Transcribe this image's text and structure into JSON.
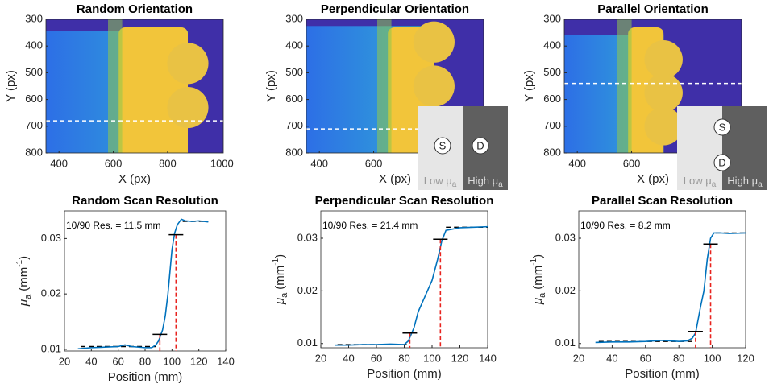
{
  "chart_data": [
    {
      "type": "image",
      "title": "Random Orientation",
      "xlabel": "X (px)",
      "ylabel": "Y (px)",
      "xlim": [
        352,
        1005
      ],
      "xticks": [
        400,
        600,
        800,
        1000
      ],
      "ylim": [
        300,
        800
      ],
      "yticks": [
        300,
        400,
        500,
        600,
        700,
        800
      ],
      "scan_y": 680
    },
    {
      "type": "image",
      "title": "Perpendicular Orientation",
      "xlabel": "X (px)",
      "ylabel": "Y (px)",
      "xlim": [
        352,
        1005
      ],
      "xticks": [
        400,
        600
      ],
      "ylim": [
        300,
        800
      ],
      "yticks": [
        300,
        400,
        500,
        600,
        700,
        800
      ],
      "scan_y": 710,
      "inset": {
        "layout": "side",
        "source": "S",
        "detector": "D",
        "low": "Low μ",
        "low_sub": "a",
        "high": "High μ",
        "high_sub": "a"
      }
    },
    {
      "type": "image",
      "title": "Parallel Orientation",
      "xlabel": "X (px)",
      "ylabel": "Y (px)",
      "xlim": [
        352,
        1005
      ],
      "xticks": [
        400,
        600
      ],
      "ylim": [
        300,
        800
      ],
      "yticks": [
        300,
        400,
        500,
        600,
        700,
        800
      ],
      "scan_y": 540,
      "inset": {
        "layout": "stacked",
        "source": "S",
        "detector": "D",
        "low": "Low μ",
        "low_sub": "a",
        "high": "High μ",
        "high_sub": "a"
      }
    },
    {
      "type": "line",
      "title": "Random Scan Resolution",
      "xlabel": "Position (mm)",
      "ylabel": {
        "symbol": "μ",
        "sub": "a",
        "unit": "(mm",
        "sup": "-1",
        "close": ")"
      },
      "annotation": "10/90 Res. = 11.5 mm",
      "color": "#0072bd",
      "xlim": [
        20,
        140
      ],
      "xticks": [
        20,
        40,
        60,
        80,
        100,
        120,
        140
      ],
      "ylim": [
        0.0097,
        0.035
      ],
      "yticks": [
        0.01,
        0.02,
        0.03
      ],
      "x": [
        30,
        40,
        50,
        60,
        65,
        70,
        80,
        85,
        88,
        90,
        93,
        95,
        97,
        100,
        102,
        104,
        107,
        110,
        115,
        120,
        127
      ],
      "values": [
        0.0101,
        0.0103,
        0.0104,
        0.0105,
        0.0108,
        0.0105,
        0.0103,
        0.0103,
        0.0108,
        0.0115,
        0.0135,
        0.016,
        0.02,
        0.028,
        0.031,
        0.0325,
        0.0335,
        0.0332,
        0.0331,
        0.0332,
        0.033
      ],
      "markers": [
        {
          "x": 91,
          "y": 0.0127
        },
        {
          "x": 103,
          "y": 0.0307
        }
      ],
      "fits": [
        {
          "x": [
            32,
            88
          ],
          "y": 0.0105
        },
        {
          "x": [
            108,
            127
          ],
          "y": 0.0331
        }
      ]
    },
    {
      "type": "line",
      "title": "Perpendicular Scan Resolution",
      "xlabel": "Position (mm)",
      "ylabel": {
        "symbol": "μ",
        "sub": "a",
        "unit": "(mm",
        "sup": "-1",
        "close": ")"
      },
      "annotation": "10/90 Res. = 21.4 mm",
      "color": "#0072bd",
      "xlim": [
        20,
        140
      ],
      "xticks": [
        20,
        40,
        60,
        80,
        100,
        120,
        140
      ],
      "ylim": [
        0.0092,
        0.0352
      ],
      "yticks": [
        0.01,
        0.02,
        0.03
      ],
      "x": [
        30,
        40,
        50,
        60,
        70,
        80,
        83,
        87,
        90,
        95,
        100,
        104,
        107,
        110,
        120,
        130,
        140
      ],
      "values": [
        0.0097,
        0.0097,
        0.0098,
        0.0098,
        0.0099,
        0.0098,
        0.0105,
        0.013,
        0.016,
        0.019,
        0.022,
        0.026,
        0.0295,
        0.0315,
        0.032,
        0.0321,
        0.0322
      ],
      "markers": [
        {
          "x": 84,
          "y": 0.012
        },
        {
          "x": 106,
          "y": 0.0298
        }
      ],
      "fits": [
        {
          "x": [
            32,
            82
          ],
          "y": 0.0098
        },
        {
          "x": [
            110,
            140
          ],
          "y": 0.0321
        }
      ]
    },
    {
      "type": "line",
      "title": "Parallel Scan Resolution",
      "xlabel": "Position (mm)",
      "ylabel": {
        "symbol": "μ",
        "sub": "a",
        "unit": "(mm",
        "sup": "-1",
        "close": ")"
      },
      "annotation": "10/90 Res. = 8.2 mm",
      "color": "#0072bd",
      "xlim": [
        20,
        120
      ],
      "xticks": [
        20,
        40,
        60,
        80,
        100,
        120
      ],
      "ylim": [
        0.0092,
        0.0352
      ],
      "yticks": [
        0.01,
        0.02,
        0.03
      ],
      "x": [
        30,
        40,
        50,
        60,
        70,
        80,
        85,
        88,
        90,
        93,
        95,
        97,
        99,
        101,
        105,
        110,
        120
      ],
      "values": [
        0.0102,
        0.0103,
        0.0103,
        0.0104,
        0.0106,
        0.0104,
        0.0105,
        0.011,
        0.012,
        0.017,
        0.02,
        0.026,
        0.03,
        0.031,
        0.031,
        0.0309,
        0.031
      ],
      "markers": [
        {
          "x": 90,
          "y": 0.0123
        },
        {
          "x": 99,
          "y": 0.0289
        }
      ],
      "fits": [
        {
          "x": [
            32,
            88
          ],
          "y": 0.0104
        },
        {
          "x": [
            102,
            120
          ],
          "y": 0.031
        }
      ]
    }
  ]
}
